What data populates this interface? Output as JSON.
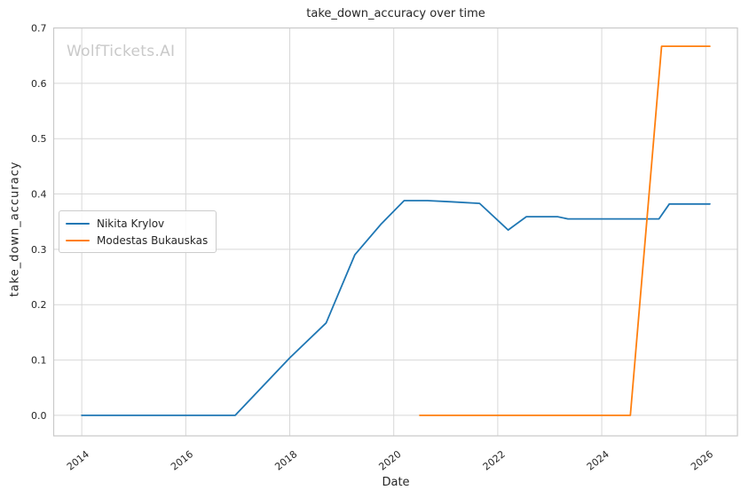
{
  "title": "take_down_accuracy over time",
  "watermark": "WolfTickets.AI",
  "chart_data": {
    "type": "line",
    "title": "take_down_accuracy over time",
    "xlabel": "Date",
    "ylabel": "take_down_accuracy",
    "x_unit": "year",
    "grid": true,
    "legend_position": "center-left",
    "x_ticks": [
      2014,
      2016,
      2018,
      2020,
      2022,
      2024,
      2026
    ],
    "y_ticks": [
      0.0,
      0.1,
      0.2,
      0.3,
      0.4,
      0.5,
      0.6,
      0.7
    ],
    "x_range": [
      2013.46,
      2026.61
    ],
    "y_range": [
      -0.037,
      0.7
    ],
    "series": [
      {
        "name": "Nikita Krylov",
        "color": "#1f77b4",
        "points": [
          [
            2014.0,
            0.0
          ],
          [
            2014.5,
            0.0
          ],
          [
            2015.0,
            0.0
          ],
          [
            2015.5,
            0.0
          ],
          [
            2016.0,
            0.0
          ],
          [
            2016.5,
            0.0
          ],
          [
            2016.95,
            0.0
          ],
          [
            2018.0,
            0.104
          ],
          [
            2018.7,
            0.167
          ],
          [
            2019.25,
            0.29
          ],
          [
            2019.75,
            0.345
          ],
          [
            2020.2,
            0.388
          ],
          [
            2020.65,
            0.388
          ],
          [
            2021.1,
            0.386
          ],
          [
            2021.65,
            0.383
          ],
          [
            2022.2,
            0.335
          ],
          [
            2022.55,
            0.359
          ],
          [
            2023.15,
            0.359
          ],
          [
            2023.35,
            0.355
          ],
          [
            2024.3,
            0.355
          ],
          [
            2025.1,
            0.355
          ],
          [
            2025.3,
            0.382
          ],
          [
            2026.08,
            0.382
          ]
        ]
      },
      {
        "name": "Modestas Bukauskas",
        "color": "#ff7f0e",
        "points": [
          [
            2020.5,
            0.0
          ],
          [
            2021.0,
            0.0
          ],
          [
            2021.5,
            0.0
          ],
          [
            2022.0,
            0.0
          ],
          [
            2022.5,
            0.0
          ],
          [
            2023.0,
            0.0
          ],
          [
            2023.5,
            0.0
          ],
          [
            2024.0,
            0.0
          ],
          [
            2024.55,
            0.0
          ],
          [
            2025.15,
            0.667
          ],
          [
            2026.08,
            0.667
          ]
        ]
      }
    ]
  },
  "legend": {
    "items": [
      {
        "label": "Nikita Krylov",
        "color": "#1f77b4"
      },
      {
        "label": "Modestas Bukauskas",
        "color": "#ff7f0e"
      }
    ]
  },
  "colors": {
    "blue_series": "#1f77b4",
    "orange_series": "#ff7f0e",
    "grid": "#d8d8d8",
    "spine": "#c9c9c9",
    "text": "#262626",
    "watermark": "#c9c9c9",
    "background": "#ffffff"
  }
}
